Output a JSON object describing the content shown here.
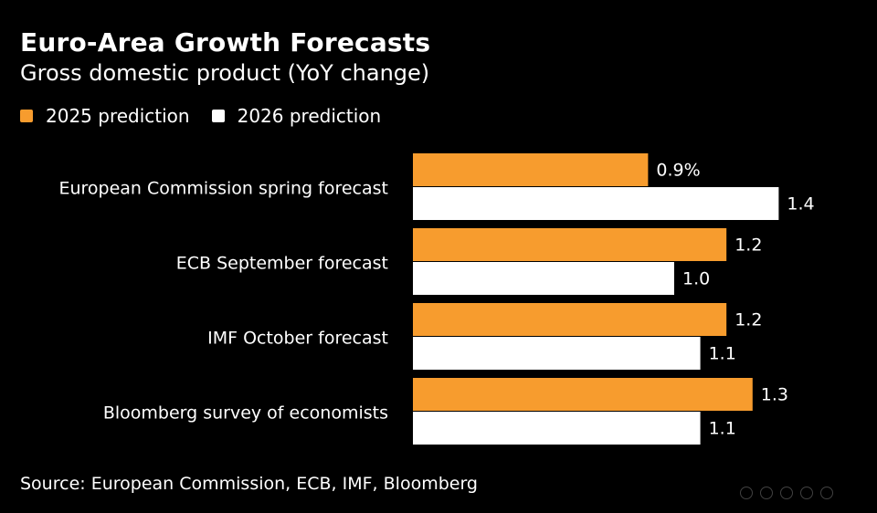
{
  "chart_data": {
    "type": "bar",
    "orientation": "horizontal",
    "title": "Euro-Area Growth Forecasts",
    "subtitle": "Gross domestic product (YoY change)",
    "categories": [
      "European Commission spring forecast",
      "ECB September forecast",
      "IMF October forecast",
      "Bloomberg survey of economists"
    ],
    "series": [
      {
        "name": "2025 prediction",
        "color": "#f79c2e",
        "values": [
          0.9,
          1.2,
          1.2,
          1.3
        ],
        "labels": [
          "0.9%",
          "1.2",
          "1.2",
          "1.3"
        ]
      },
      {
        "name": "2026 prediction",
        "color": "#ffffff",
        "values": [
          1.4,
          1.0,
          1.1,
          1.1
        ],
        "labels": [
          "1.4",
          "1.0",
          "1.1",
          "1.1"
        ]
      }
    ],
    "xlim": [
      0,
      1.5
    ],
    "grid": false,
    "source": "Source: European Commission, ECB, IMF, Bloomberg"
  }
}
